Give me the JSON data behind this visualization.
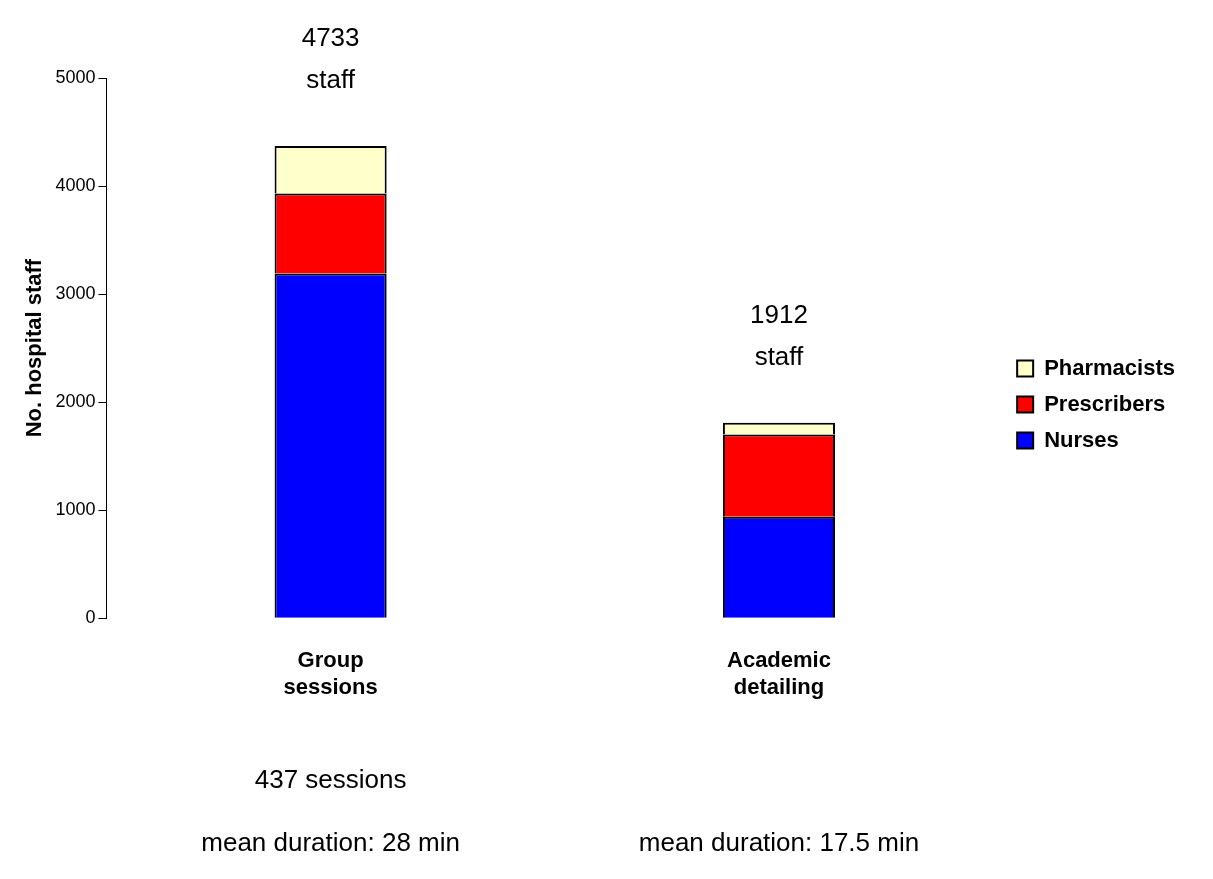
{
  "chart_data": {
    "type": "bar",
    "stacked": true,
    "ylabel": "No. hospital staff",
    "categories": [
      "Group sessions",
      "Academic detailing"
    ],
    "series": [
      {
        "name": "Nurses",
        "color": "#0000ff",
        "values": [
          3190,
          940
        ]
      },
      {
        "name": "Prescribers",
        "color": "#ff0000",
        "values": [
          740,
          760
        ]
      },
      {
        "name": "Pharmacists",
        "color": "#ffffcc",
        "values": [
          440,
          110
        ]
      }
    ],
    "ylim": [
      0,
      5000
    ],
    "yticks": [
      0,
      1000,
      2000,
      3000,
      4000,
      5000
    ],
    "grid": false,
    "legend": "right",
    "annotations": [
      "4733 staff",
      "1912 staff",
      "437 sessions",
      "mean duration: 28 min",
      "mean duration: 17.5 min"
    ]
  }
}
